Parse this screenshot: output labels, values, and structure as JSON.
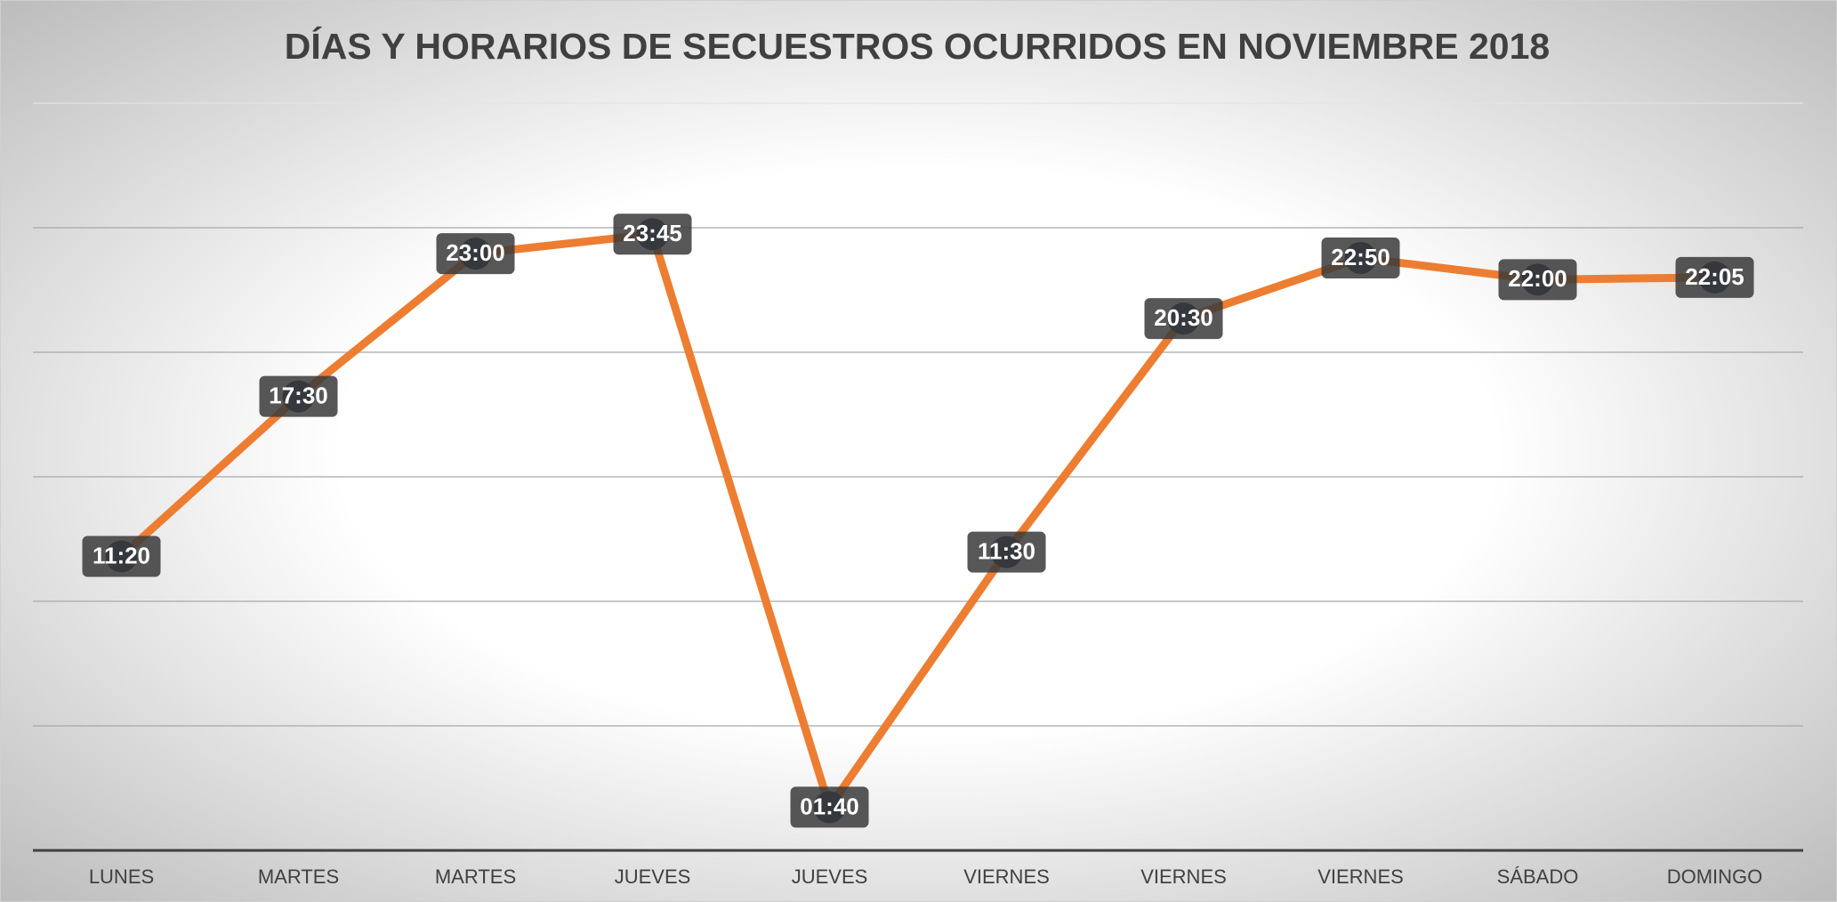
{
  "chart_data": {
    "type": "line",
    "title": "DÍAS Y HORARIOS DE SECUESTROS OCURRIDOS EN NOVIEMBRE 2018",
    "categories": [
      "LUNES",
      "MARTES",
      "MARTES",
      "JUEVES",
      "JUEVES",
      "VIERNES",
      "VIERNES",
      "VIERNES",
      "SÁBADO",
      "DOMINGO"
    ],
    "series": [
      {
        "color": "#ed7d31",
        "values": [
          11.333,
          17.5,
          23,
          23.75,
          1.667,
          11.5,
          20.5,
          22.833,
          22,
          22.083
        ],
        "value_labels": [
          "11:20",
          "17:30",
          "23:00",
          "23:45",
          "01:40",
          "11:30",
          "20:30",
          "22:50",
          "22:00",
          "22:05"
        ]
      }
    ],
    "ylim": [
      0,
      28.8
    ],
    "yticks": [
      0,
      4.8,
      9.6,
      14.4,
      19.2,
      24,
      28.8
    ],
    "grid": true
  }
}
